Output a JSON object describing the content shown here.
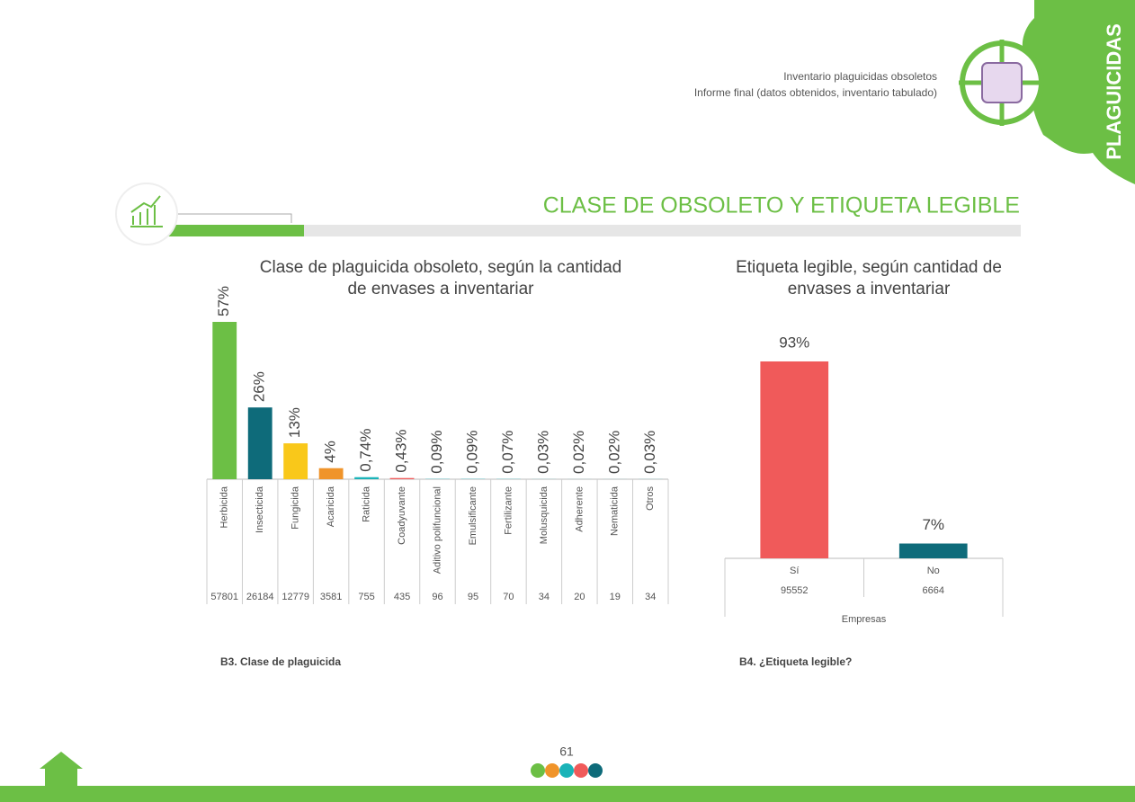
{
  "header": {
    "line1": "Inventario plaguicidas obsoletos",
    "line2": "Informe final (datos obtenidos, inventario tabulado)"
  },
  "side_tab": "PLAGUICIDAS",
  "section_title": "CLASE  DE OBSOLETO Y ETIQUETA LEGIBLE",
  "chart_data": [
    {
      "type": "bar",
      "title": [
        "Clase de plaguicida obsoleto, según la cantidad",
        "de envases a inventariar"
      ],
      "categories": [
        "Herbicida",
        "Insecticida",
        "Fungicida",
        "Acaricida",
        "Raticida",
        "Coadyuvante",
        "Aditivo polifuncional",
        "Emulsificante",
        "Fertilizante",
        "Molusquicida",
        "Adherente",
        "Nematicida",
        "Otros"
      ],
      "values": [
        57,
        26,
        13,
        4,
        0.74,
        0.43,
        0.09,
        0.09,
        0.07,
        0.03,
        0.02,
        0.02,
        0.03
      ],
      "value_labels": [
        "57%",
        "26%",
        "13%",
        "4%",
        "0,74%",
        "0,43%",
        "0,09%",
        "0,09%",
        "0,07%",
        "0,03%",
        "0,02%",
        "0,02%",
        "0,03%"
      ],
      "counts": [
        57801,
        26184,
        12779,
        3581,
        755,
        435,
        96,
        95,
        70,
        34,
        20,
        19,
        34
      ],
      "colors": [
        "#6cbf45",
        "#0e6b7a",
        "#f9c81a",
        "#f0942a",
        "#1ab3b8",
        "#f05a5a",
        "#1ab3b8",
        "#1ab3b8",
        "#1ab3b8",
        "#1ab3b8",
        "#1ab3b8",
        "#1ab3b8",
        "#1ab3b8"
      ],
      "caption": "B3. Clase de plaguicida"
    },
    {
      "type": "bar",
      "title": [
        "Etiqueta legible, según cantidad de",
        "envases a inventariar"
      ],
      "categories": [
        "Sí",
        "No"
      ],
      "values": [
        93,
        7
      ],
      "value_labels": [
        "93%",
        "7%"
      ],
      "counts": [
        95552,
        6664
      ],
      "colors": [
        "#f05a5a",
        "#0e6b7a"
      ],
      "x_label": "Empresas",
      "caption": "B4. ¿Etiqueta legible?"
    }
  ],
  "page_number": "61"
}
